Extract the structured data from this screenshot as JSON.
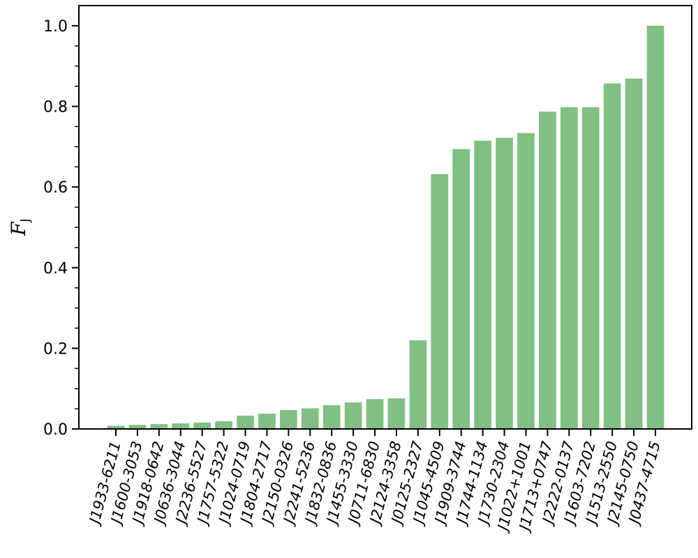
{
  "chart_data": {
    "type": "bar",
    "ylabel": "F",
    "ylabel_subscript": "J",
    "xlabel": "",
    "title": "",
    "ylim": [
      0,
      1.05
    ],
    "yticks": [
      "0.0",
      "0.2",
      "0.4",
      "0.6",
      "0.8",
      "1.0"
    ],
    "bar_color": "#81c083",
    "categories": [
      "J1933-6211",
      "J1600-3053",
      "J1918-0642",
      "J0636-3044",
      "J2236-5527",
      "J1757-5322",
      "J1024-0719",
      "J1804-2717",
      "J2150-0326",
      "J2241-5236",
      "J1832-0836",
      "J1455-3330",
      "J0711-6830",
      "J2124-3358",
      "J0125-2327",
      "J1045-4509",
      "J1909-3744",
      "J1744-1134",
      "J1730-2304",
      "J1022+1001",
      "J1713+0747",
      "J2222-0137",
      "J1603-7202",
      "J1513-2550",
      "J2145-0750",
      "J0437-4715"
    ],
    "values": [
      0.008,
      0.01,
      0.012,
      0.014,
      0.016,
      0.019,
      0.033,
      0.038,
      0.047,
      0.051,
      0.059,
      0.066,
      0.074,
      0.076,
      0.22,
      0.632,
      0.694,
      0.715,
      0.722,
      0.734,
      0.787,
      0.798,
      0.798,
      0.857,
      0.869,
      1.0
    ]
  }
}
